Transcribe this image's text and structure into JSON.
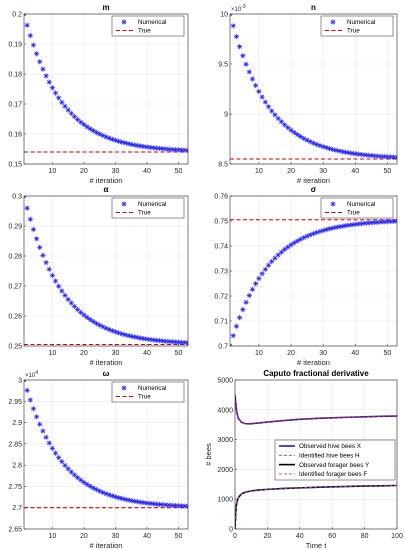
{
  "colors": {
    "numerical": "#1a1aff",
    "true": "#cc0000",
    "observed_hive": "#1a1ab0",
    "identified_hive": "#d62728",
    "observed_forager": "#000000",
    "identified_forager": "#b040d0"
  },
  "chart_data": [
    {
      "type": "scatter",
      "title": "m",
      "xlabel": "# iteration",
      "ylabel": "",
      "exponent": "",
      "xlim": [
        1,
        53
      ],
      "ylim": [
        0.15,
        0.2
      ],
      "xticks": [
        10,
        20,
        30,
        40,
        50
      ],
      "yticks": [
        0.15,
        0.16,
        0.17,
        0.18,
        0.19,
        0.2
      ],
      "ytick_labels": [
        "0.15",
        "0.16",
        "0.17",
        "0.18",
        "0.19",
        "0.2"
      ],
      "grid": true,
      "legend": "top-right",
      "legend_entries": [
        "Numerical",
        "True"
      ],
      "start": 0.2,
      "true_value": 0.154,
      "decay": 0.085,
      "n_iter": 53
    },
    {
      "type": "scatter",
      "title": "n",
      "xlabel": "# iteration",
      "ylabel": "",
      "exponent": "10",
      "exponent_power": "-3",
      "xlim": [
        1,
        53
      ],
      "ylim": [
        0.0085,
        0.01
      ],
      "xticks": [
        10,
        20,
        30,
        40,
        50
      ],
      "yticks": [
        0.0085,
        0.009,
        0.0095,
        0.01
      ],
      "ytick_labels": [
        "8.5",
        "9",
        "9.5",
        "10"
      ],
      "grid": true,
      "legend": "top-right",
      "legend_entries": [
        "Numerical",
        "True"
      ],
      "start": 0.01,
      "true_value": 0.00855,
      "decay": 0.085,
      "n_iter": 53
    },
    {
      "type": "scatter",
      "title": "α",
      "xlabel": "# iteration",
      "ylabel": "",
      "exponent": "",
      "xlim": [
        1,
        53
      ],
      "ylim": [
        0.25,
        0.3
      ],
      "xticks": [
        10,
        20,
        30,
        40,
        50
      ],
      "yticks": [
        0.25,
        0.26,
        0.27,
        0.28,
        0.29,
        0.3
      ],
      "ytick_labels": [
        "0.25",
        "0.26",
        "0.27",
        "0.28",
        "0.29",
        "0.3"
      ],
      "grid": true,
      "legend": "top-right",
      "legend_entries": [
        "Numerical",
        "True"
      ],
      "start": 0.3,
      "true_value": 0.2505,
      "decay": 0.085,
      "n_iter": 53
    },
    {
      "type": "scatter",
      "title": "σ",
      "xlabel": "# iteration",
      "ylabel": "",
      "exponent": "",
      "xlim": [
        1,
        53
      ],
      "ylim": [
        0.7,
        0.76
      ],
      "xticks": [
        10,
        20,
        30,
        40,
        50
      ],
      "yticks": [
        0.7,
        0.71,
        0.72,
        0.73,
        0.74,
        0.75,
        0.76
      ],
      "ytick_labels": [
        "0.7",
        "0.71",
        "0.72",
        "0.73",
        "0.74",
        "0.75",
        "0.76"
      ],
      "grid": true,
      "legend": "top-right",
      "legend_entries": [
        "Numerical",
        "True"
      ],
      "start": 0.7,
      "true_value": 0.7505,
      "decay": 0.085,
      "n_iter": 53
    },
    {
      "type": "scatter",
      "title": "ω",
      "xlabel": "# iteration",
      "ylabel": "",
      "exponent": "10",
      "exponent_power": "4",
      "xlim": [
        1,
        53
      ],
      "ylim": [
        26500,
        30000
      ],
      "xticks": [
        10,
        20,
        30,
        40,
        50
      ],
      "yticks": [
        26500,
        27000,
        27500,
        28000,
        28500,
        29000,
        29500,
        30000
      ],
      "ytick_labels": [
        "2.65",
        "2.7",
        "2.75",
        "2.8",
        "2.85",
        "2.9",
        "2.95",
        "3"
      ],
      "grid": true,
      "legend": "top-right",
      "legend_entries": [
        "Numerical",
        "True"
      ],
      "start": 30000,
      "true_value": 27000,
      "decay": 0.085,
      "n_iter": 53
    },
    {
      "type": "line",
      "title": "Caputo fractional derivative",
      "xlabel": "Time t",
      "ylabel": "# bees",
      "exponent": "",
      "xlim": [
        0,
        100
      ],
      "ylim": [
        0,
        5000
      ],
      "xticks": [
        0,
        20,
        40,
        60,
        80,
        100
      ],
      "yticks": [
        0,
        1000,
        2000,
        3000,
        4000,
        5000
      ],
      "ytick_labels": [
        "0",
        "1000",
        "2000",
        "3000",
        "4000",
        "5000"
      ],
      "grid": true,
      "legend": "middle-right",
      "series": [
        {
          "name": "Observed hive bees X",
          "style": "solid",
          "width": 1.6,
          "color_key": "observed_hive",
          "x": [
            0,
            1,
            2,
            4,
            6,
            8,
            10,
            15,
            20,
            30,
            40,
            50,
            60,
            70,
            80,
            90,
            100
          ],
          "y": [
            4500,
            3950,
            3720,
            3580,
            3540,
            3530,
            3535,
            3560,
            3590,
            3640,
            3680,
            3710,
            3730,
            3750,
            3765,
            3780,
            3790
          ]
        },
        {
          "name": "Identified hive bees H",
          "style": "dashed",
          "width": 0.9,
          "color_key": "identified_hive",
          "x": [
            0,
            1,
            2,
            4,
            6,
            8,
            10,
            15,
            20,
            30,
            40,
            50,
            60,
            70,
            80,
            90,
            100
          ],
          "y": [
            4500,
            3950,
            3720,
            3580,
            3540,
            3530,
            3535,
            3560,
            3590,
            3640,
            3680,
            3710,
            3730,
            3750,
            3765,
            3780,
            3790
          ]
        },
        {
          "name": "Observed forager bees Y",
          "style": "solid",
          "width": 1.6,
          "color_key": "observed_forager",
          "x": [
            0,
            0.5,
            1,
            2,
            4,
            6,
            10,
            15,
            20,
            30,
            40,
            50,
            60,
            70,
            80,
            90,
            100
          ],
          "y": [
            0,
            600,
            850,
            1050,
            1180,
            1230,
            1280,
            1310,
            1330,
            1360,
            1380,
            1400,
            1415,
            1430,
            1440,
            1450,
            1460
          ]
        },
        {
          "name": "Identified forager bees F",
          "style": "dashed",
          "width": 0.9,
          "color_key": "identified_forager",
          "x": [
            0,
            0.5,
            1,
            2,
            4,
            6,
            10,
            15,
            20,
            30,
            40,
            50,
            60,
            70,
            80,
            90,
            100
          ],
          "y": [
            0,
            600,
            850,
            1050,
            1180,
            1230,
            1280,
            1310,
            1330,
            1360,
            1380,
            1400,
            1415,
            1430,
            1440,
            1450,
            1460
          ]
        }
      ]
    }
  ]
}
